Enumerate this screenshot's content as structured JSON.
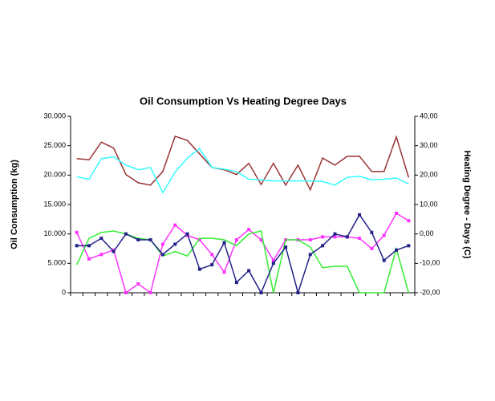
{
  "chart_data": {
    "type": "line",
    "title": "Oil Consumption Vs Heating Degree Days",
    "y_label": "Oil Consumption (kg)",
    "y2_label": "Heating Degree - Days (C)",
    "categories": [
      null,
      null,
      null,
      null,
      null,
      null,
      null,
      null,
      null,
      null,
      null,
      null,
      null,
      null,
      null,
      null,
      null,
      null,
      null,
      null,
      null,
      null,
      null,
      null,
      null,
      null,
      null,
      null
    ],
    "ylim": [
      0,
      30000
    ],
    "yticks": [
      {
        "value": 0,
        "label": "0"
      },
      {
        "value": 5000,
        "label": "5.000"
      },
      {
        "value": 10000,
        "label": "10.000"
      },
      {
        "value": 15000,
        "label": "15.000"
      },
      {
        "value": 20000,
        "label": "20.000"
      },
      {
        "value": 25000,
        "label": "25.000"
      },
      {
        "value": 30000,
        "label": "30.000"
      }
    ],
    "y2lim": [
      -20,
      40
    ],
    "y2ticks": [
      {
        "value": -20,
        "label": "-20,00"
      },
      {
        "value": -10,
        "label": "-10,00"
      },
      {
        "value": 0,
        "label": "0,00"
      },
      {
        "value": 10,
        "label": "10,00"
      },
      {
        "value": 20,
        "label": "20,00"
      },
      {
        "value": 30,
        "label": "30,00"
      },
      {
        "value": 40,
        "label": "40,00"
      }
    ],
    "grid": false,
    "series": [
      {
        "color": "#993333",
        "markers": false,
        "values": [
          22800,
          22600,
          25600,
          24600,
          20100,
          18700,
          18300,
          20600,
          26600,
          25900,
          23600,
          21300,
          20900,
          20100,
          22000,
          18400,
          22000,
          18300,
          21700,
          17500,
          22900,
          21700,
          23200,
          23200,
          20600,
          20600,
          26500,
          19600
        ]
      },
      {
        "color": "#33ffff",
        "markers": false,
        "values": [
          19700,
          19300,
          22800,
          23100,
          21700,
          20900,
          21300,
          17000,
          20500,
          22900,
          24500,
          21300,
          21000,
          20600,
          19300,
          19200,
          19000,
          19000,
          19000,
          19000,
          18900,
          18300,
          19600,
          19800,
          19200,
          19300,
          19500,
          18500
        ]
      },
      {
        "color": "#ff33ff",
        "markers": true,
        "axis": "y2",
        "values": [
          0.5,
          -8.5,
          -7,
          -5.5,
          -20,
          -17,
          -20,
          -3.5,
          3,
          -0.5,
          -2,
          -7,
          -13,
          -2,
          1.5,
          -2,
          -9,
          -2,
          -2,
          -2,
          -1,
          -1,
          -1,
          -1.5,
          -5,
          -0.5,
          7,
          4.5
        ]
      },
      {
        "color": "#33ee33",
        "markers": false,
        "axis": "y2",
        "values": [
          -10.5,
          -1.5,
          0.5,
          1,
          0,
          -1.5,
          -2,
          -7.5,
          -6,
          -7.5,
          -1.5,
          -1.5,
          -2,
          -4,
          0,
          1,
          -20,
          -2,
          -2,
          -4.5,
          -11.5,
          -11,
          -11,
          -20,
          -20,
          -20,
          -5,
          -20
        ]
      },
      {
        "color": "#222288",
        "markers": true,
        "axis": "y2",
        "values": [
          -4,
          -4,
          -1.5,
          -6,
          0,
          -2,
          -2,
          -7,
          -3.5,
          0,
          -12,
          -10.5,
          -3,
          -16.5,
          -12.5,
          -20,
          -10,
          -4.5,
          -20,
          -7,
          -4,
          0,
          -1,
          6.5,
          0.5,
          -9,
          -5.5,
          -4
        ]
      }
    ]
  }
}
